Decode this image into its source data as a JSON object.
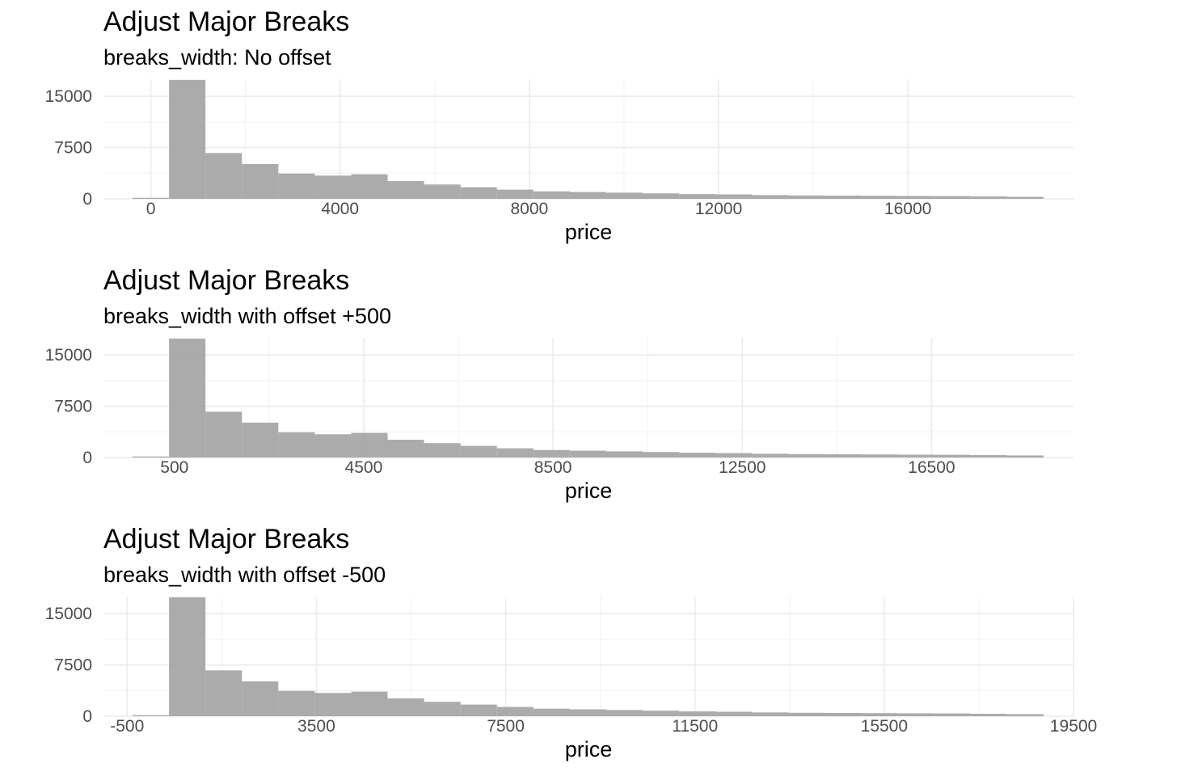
{
  "chart_data": [
    {
      "type": "bar",
      "title": "Adjust Major Breaks",
      "subtitle": "breaks_width: No offset",
      "xlabel": "price",
      "ylabel": "",
      "xlim": [
        -1000,
        19500
      ],
      "ylim": [
        0,
        17500
      ],
      "x_ticks": [
        0,
        4000,
        8000,
        12000,
        16000
      ],
      "x_tick_labels": [
        "0",
        "4000",
        "8000",
        "12000",
        "16000"
      ],
      "y_ticks": [
        0,
        7500,
        15000
      ],
      "y_tick_labels": [
        "0",
        "7500",
        "15000"
      ],
      "grid": true,
      "fill_color": "#a6a6a6"
    },
    {
      "type": "bar",
      "title": "Adjust Major Breaks",
      "subtitle": "breaks_width with offset +500",
      "xlabel": "price",
      "ylabel": "",
      "xlim": [
        -1000,
        19500
      ],
      "ylim": [
        0,
        17500
      ],
      "x_ticks": [
        500,
        4500,
        8500,
        12500,
        16500
      ],
      "x_tick_labels": [
        "500",
        "4500",
        "8500",
        "12500",
        "16500"
      ],
      "y_ticks": [
        0,
        7500,
        15000
      ],
      "y_tick_labels": [
        "0",
        "7500",
        "15000"
      ],
      "grid": true,
      "fill_color": "#a6a6a6"
    },
    {
      "type": "bar",
      "title": "Adjust Major Breaks",
      "subtitle": "breaks_width with offset -500",
      "xlabel": "price",
      "ylabel": "",
      "xlim": [
        -1000,
        19500
      ],
      "ylim": [
        0,
        17500
      ],
      "x_ticks": [
        -500,
        3500,
        7500,
        11500,
        15500,
        19500
      ],
      "x_tick_labels": [
        "-500",
        "3500",
        "7500",
        "11500",
        "15500",
        "19500"
      ],
      "y_ticks": [
        0,
        7500,
        15000
      ],
      "y_tick_labels": [
        "0",
        "7500",
        "15000"
      ],
      "grid": true,
      "fill_color": "#a6a6a6"
    }
  ],
  "histogram": {
    "bin_edges": [
      -385,
      385,
      1155,
      1925,
      2695,
      3465,
      4235,
      5005,
      5775,
      6545,
      7315,
      8085,
      8855,
      9625,
      10395,
      11165,
      11935,
      12705,
      13475,
      14245,
      15015,
      15785,
      16555,
      17325,
      18095,
      18865
    ],
    "counts": [
      150,
      17400,
      6700,
      5100,
      3700,
      3400,
      3600,
      2600,
      2100,
      1700,
      1350,
      1100,
      1000,
      900,
      800,
      700,
      650,
      550,
      500,
      480,
      450,
      420,
      400,
      350,
      300
    ]
  }
}
